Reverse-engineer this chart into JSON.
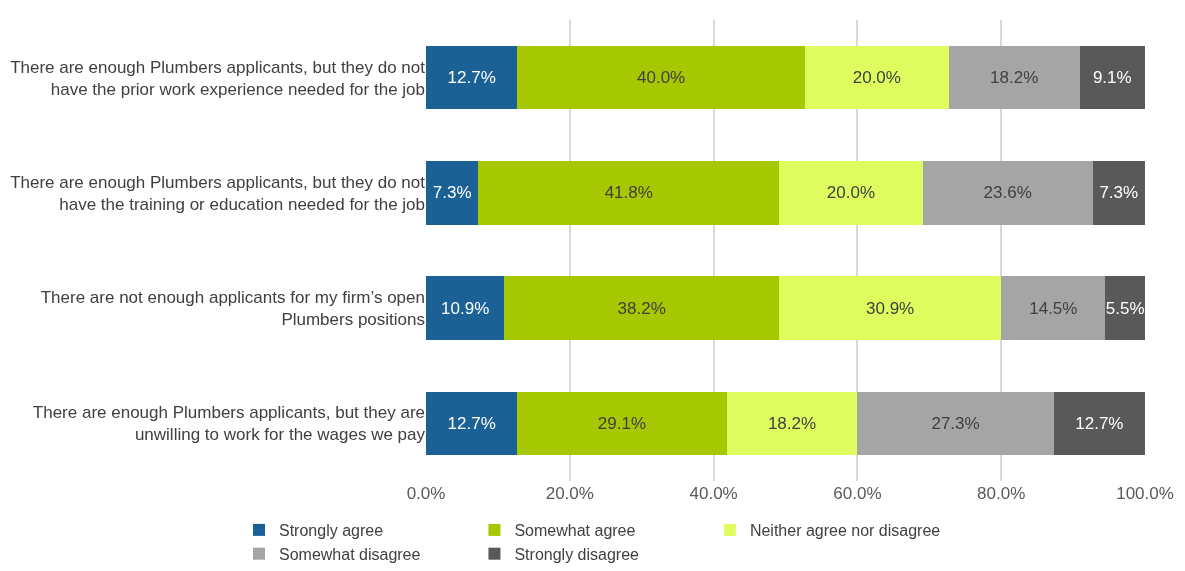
{
  "chart_data": {
    "type": "bar",
    "orientation": "horizontal",
    "stacked": true,
    "categories": [
      "There are enough Plumbers applicants, but they do not have the prior work experience needed for the job",
      "There are enough Plumbers applicants, but they do not have the training or education needed for the job",
      "There are not enough applicants for my firm’s open Plumbers positions",
      "There are enough Plumbers applicants, but they are unwilling to work for the wages we pay"
    ],
    "series": [
      {
        "name": "Strongly agree",
        "color": "#1b6196",
        "values": [
          12.7,
          7.3,
          10.9,
          12.7
        ],
        "value_labels": [
          "12.7%",
          "7.3%",
          "10.9%",
          "12.7%"
        ]
      },
      {
        "name": "Somewhat agree",
        "color": "#a5c800",
        "values": [
          40.0,
          41.8,
          38.2,
          29.1
        ],
        "value_labels": [
          "40.0%",
          "41.8%",
          "38.2%",
          "29.1%"
        ]
      },
      {
        "name": "Neither agree nor disagree",
        "color": "#dffc5e",
        "values": [
          20.0,
          20.0,
          30.9,
          18.2
        ],
        "value_labels": [
          "20.0%",
          "20.0%",
          "30.9%",
          "18.2%"
        ]
      },
      {
        "name": "Somewhat disagree",
        "color": "#a5a5a5",
        "values": [
          18.2,
          23.6,
          14.5,
          27.3
        ],
        "value_labels": [
          "18.2%",
          "23.6%",
          "14.5%",
          "27.3%"
        ]
      },
      {
        "name": "Strongly disagree",
        "color": "#595959",
        "values": [
          9.1,
          7.3,
          5.5,
          12.7
        ],
        "value_labels": [
          "9.1%",
          "7.3%",
          "5.5%",
          "12.7%"
        ]
      }
    ],
    "xlim": [
      0,
      100
    ],
    "xticks": [
      {
        "value": 0,
        "label": "0.0%"
      },
      {
        "value": 20,
        "label": "20.0%"
      },
      {
        "value": 40,
        "label": "40.0%"
      },
      {
        "value": 60,
        "label": "60.0%"
      },
      {
        "value": 80,
        "label": "80.0%"
      },
      {
        "value": 100,
        "label": "100.0%"
      }
    ],
    "grid": "x",
    "legend": "bottom"
  }
}
